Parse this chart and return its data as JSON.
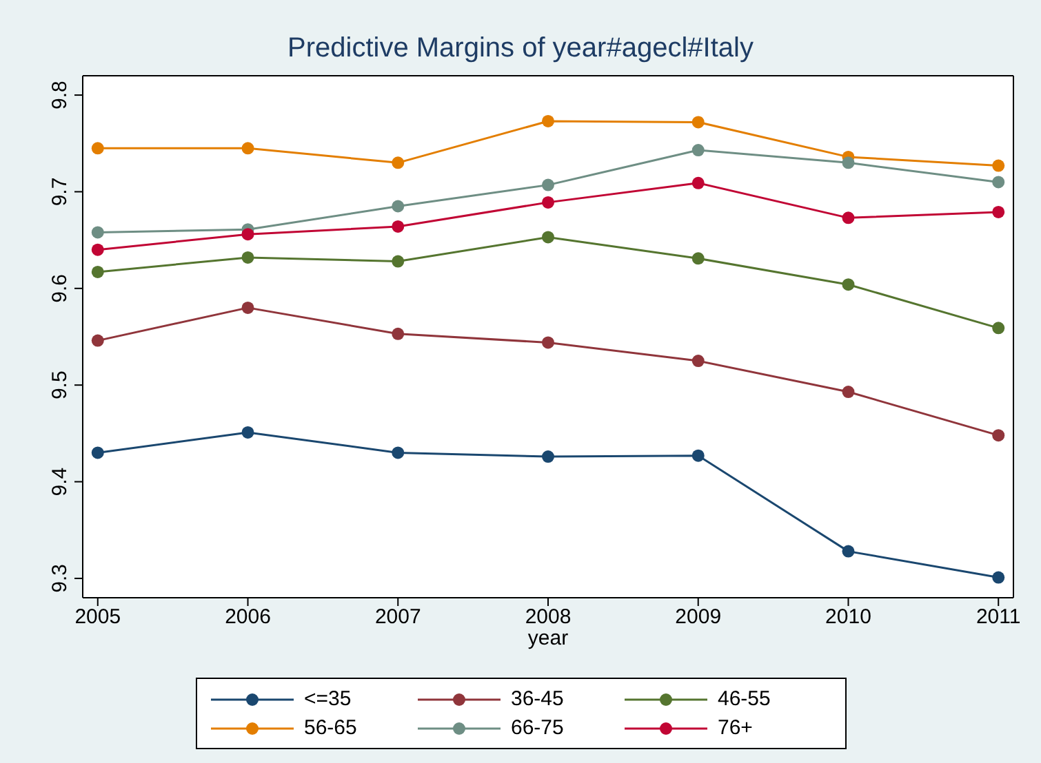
{
  "chart_data": {
    "type": "line",
    "title": "Predictive Margins of year#agecl#Italy",
    "xlabel": "year",
    "x": [
      2005,
      2006,
      2007,
      2008,
      2009,
      2010,
      2011
    ],
    "xlim": [
      2004.9,
      2011.1
    ],
    "xticks": [
      2005,
      2006,
      2007,
      2008,
      2009,
      2010,
      2011
    ],
    "ylim": [
      9.28,
      9.82
    ],
    "yticks": [
      9.3,
      9.4,
      9.5,
      9.6,
      9.7,
      9.8
    ],
    "grid": false,
    "legend": "bottom",
    "marker": "circle",
    "line_style": "solid",
    "series": [
      {
        "name": "<=35",
        "color": "#1a476f",
        "values": [
          9.43,
          9.451,
          9.43,
          9.426,
          9.427,
          9.328,
          9.301
        ]
      },
      {
        "name": "36-45",
        "color": "#90353b",
        "values": [
          9.546,
          9.58,
          9.553,
          9.544,
          9.525,
          9.493,
          9.448
        ]
      },
      {
        "name": "46-55",
        "color": "#55752f",
        "values": [
          9.617,
          9.632,
          9.628,
          9.653,
          9.631,
          9.604,
          9.559
        ]
      },
      {
        "name": "56-65",
        "color": "#e37e00",
        "values": [
          9.745,
          9.745,
          9.73,
          9.773,
          9.772,
          9.736,
          9.727
        ]
      },
      {
        "name": "66-75",
        "color": "#6e8e84",
        "values": [
          9.658,
          9.661,
          9.685,
          9.707,
          9.743,
          9.73,
          9.71
        ]
      },
      {
        "name": "76+",
        "color": "#c10534",
        "values": [
          9.64,
          9.656,
          9.664,
          9.689,
          9.709,
          9.673,
          9.679
        ]
      }
    ]
  }
}
